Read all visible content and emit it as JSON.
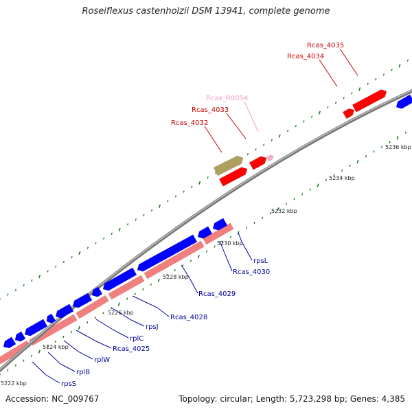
{
  "title": "Roseiflexus castenholzii DSM 13941, complete genome",
  "accession": "Accession: NC_009767",
  "stats": "Topology: circular; Length: 5,723,298 bp; Genes: 4,385",
  "colors": {
    "backbone": "#8c8c8c",
    "forward_gene": "#ff0000",
    "reverse_gene": "#0000ff",
    "reverse_shadow": "#f08080",
    "rna_gene": "#ffaacc",
    "pseudo_gene": "#b0a060",
    "tick": "#1a7a1a",
    "forward_label": "#cc0000",
    "reverse_label": "#000099",
    "rna_label": "#ff99bb"
  },
  "ticks": [
    "5222 kbp",
    "5224 kbp",
    "5226 kbp",
    "5228 kbp",
    "5230 kbp",
    "5232 kbp",
    "5234 kbp",
    "5236 kbp"
  ],
  "genes_forward": [
    {
      "name": "Rcas_4032",
      "color": "#cc0000"
    },
    {
      "name": "Rcas_4033",
      "color": "#cc0000"
    },
    {
      "name": "Rcas_R0054",
      "color": "#ff99bb"
    },
    {
      "name": "Rcas_4034",
      "color": "#cc0000"
    },
    {
      "name": "Rcas_4035",
      "color": "#cc0000"
    }
  ],
  "genes_reverse": [
    {
      "name": "rpsL"
    },
    {
      "name": "Rcas_4030"
    },
    {
      "name": "Rcas_4029"
    },
    {
      "name": "Rcas_4028"
    },
    {
      "name": "rpsJ"
    },
    {
      "name": "rplC"
    },
    {
      "name": "Rcas_4025"
    },
    {
      "name": "rplW"
    },
    {
      "name": "rplB"
    },
    {
      "name": "rpsS"
    }
  ]
}
